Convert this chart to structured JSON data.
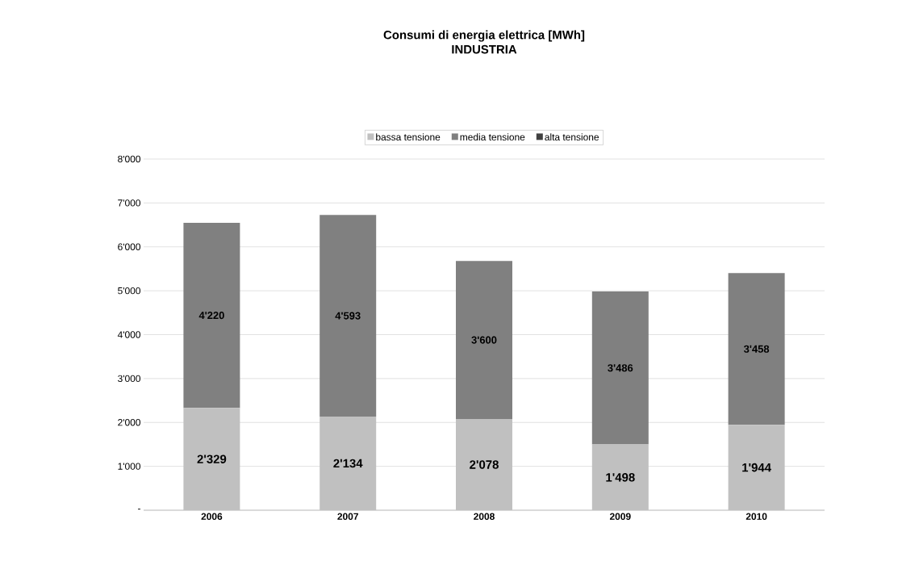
{
  "chart_data": {
    "type": "bar",
    "stacked": true,
    "title": "Consumi di energia elettrica [MWh]",
    "subtitle": "INDUSTRIA",
    "categories": [
      "2006",
      "2007",
      "2008",
      "2009",
      "2010"
    ],
    "series": [
      {
        "name": "bassa tensione",
        "color": "#c0c0c0",
        "values": [
          2329,
          2134,
          2078,
          1498,
          1944
        ],
        "value_labels": [
          "2'329",
          "2'134",
          "2'078",
          "1'498",
          "1'944"
        ]
      },
      {
        "name": "media tensione",
        "color": "#808080",
        "values": [
          4220,
          4593,
          3600,
          3486,
          3458
        ],
        "value_labels": [
          "4'220",
          "4'593",
          "3'600",
          "3'486",
          "3'458"
        ]
      },
      {
        "name": "alta tensione",
        "color": "#404040",
        "values": [
          0,
          0,
          0,
          0,
          0
        ]
      }
    ],
    "ylim": [
      0,
      8000
    ],
    "yticks": [
      {
        "value": 0,
        "label": "-"
      },
      {
        "value": 1000,
        "label": "1'000"
      },
      {
        "value": 2000,
        "label": "2'000"
      },
      {
        "value": 3000,
        "label": "3'000"
      },
      {
        "value": 4000,
        "label": "4'000"
      },
      {
        "value": 5000,
        "label": "5'000"
      },
      {
        "value": 6000,
        "label": "6'000"
      },
      {
        "value": 7000,
        "label": "7'000"
      },
      {
        "value": 8000,
        "label": "8'000"
      }
    ],
    "grid": "y",
    "legend": "top"
  }
}
